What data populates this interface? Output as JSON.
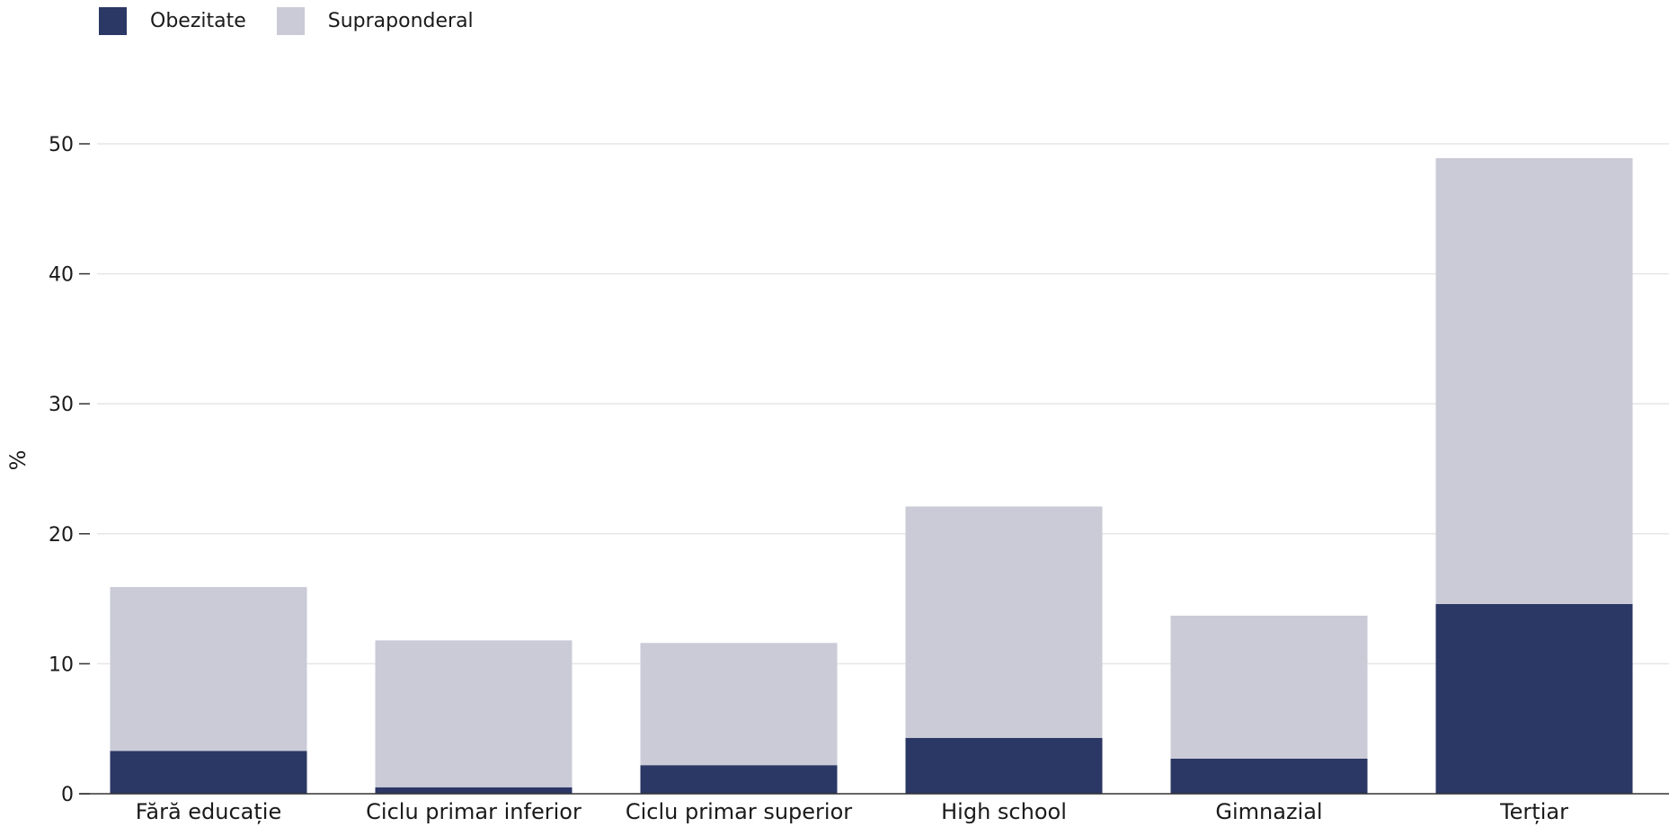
{
  "chart_data": {
    "type": "bar",
    "stacked": true,
    "categories": [
      "Fără educație",
      "Ciclu primar inferior",
      "Ciclu primar superior",
      "High school",
      "Gimnazial",
      "Terțiar"
    ],
    "series": [
      {
        "name": "Obezitate",
        "color": "#2b3764",
        "values": [
          3.3,
          0.5,
          2.2,
          4.3,
          2.7,
          14.6
        ]
      },
      {
        "name": "Supraponderal",
        "color": "#cacbd7",
        "values": [
          12.6,
          11.3,
          9.4,
          17.8,
          11.0,
          34.3
        ]
      }
    ],
    "title": "",
    "xlabel": "",
    "ylabel": "%",
    "ylim": [
      0,
      50
    ],
    "yticks": [
      0,
      10,
      20,
      30,
      40,
      50
    ],
    "grid": true,
    "legend_position": "top-left"
  }
}
